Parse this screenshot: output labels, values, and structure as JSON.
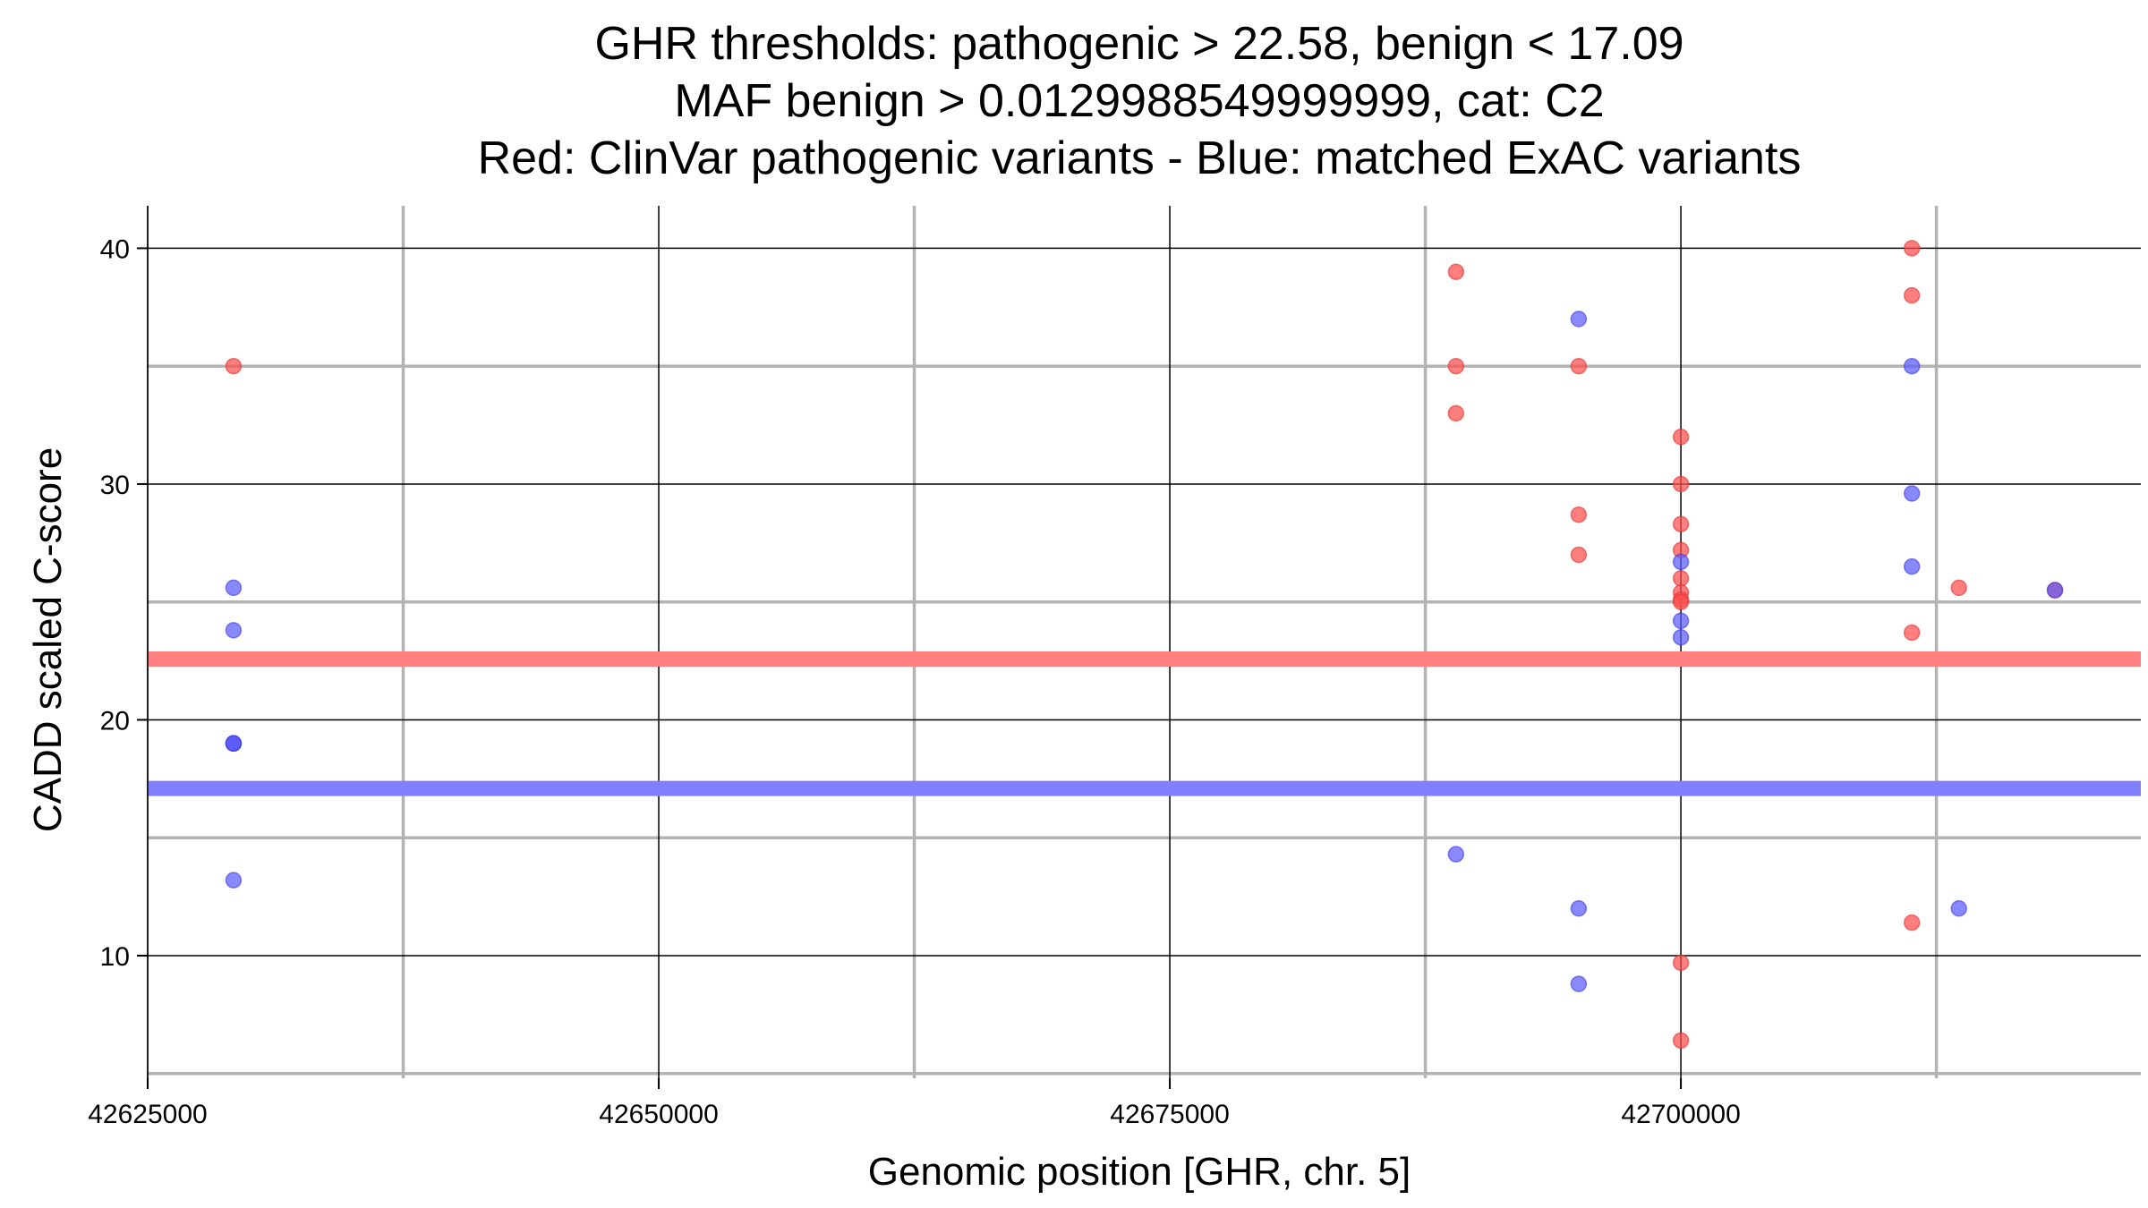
{
  "chart_data": {
    "type": "scatter",
    "title": [
      "GHR thresholds: pathogenic > 22.58, benign < 17.09",
      "MAF benign > 0.0129988549999999, cat: C2",
      "Red: ClinVar pathogenic variants - Blue: matched ExAC variants"
    ],
    "xlabel": "Genomic position [GHR, chr. 5]",
    "ylabel": "CADD scaled C-score",
    "xlim": [
      42625000,
      42722500
    ],
    "ylim": [
      4.8,
      41.8
    ],
    "xticks": [
      42625000,
      42650000,
      42675000,
      42700000
    ],
    "xtick_labels": [
      "42625000",
      "42650000",
      "42675000",
      "42700000"
    ],
    "x_minor_gridlines": [
      42637500,
      42662500,
      42687500,
      42712500
    ],
    "yticks": [
      10,
      20,
      30,
      40
    ],
    "ytick_labels": [
      "10",
      "20",
      "30",
      "40"
    ],
    "y_minor_gridlines": [
      5,
      15,
      25,
      35
    ],
    "thresholds": [
      {
        "name": "pathogenic",
        "value": 22.58,
        "color": "#ff8080"
      },
      {
        "name": "benign",
        "value": 17.09,
        "color": "#8080ff"
      }
    ],
    "series": [
      {
        "name": "ClinVar pathogenic variants",
        "color": "#ff4d4d",
        "edge": "#e03030",
        "points": [
          [
            42629200,
            35
          ],
          [
            42689000,
            39
          ],
          [
            42689000,
            35
          ],
          [
            42689000,
            33
          ],
          [
            42695000,
            35
          ],
          [
            42695000,
            28.7
          ],
          [
            42695000,
            27
          ],
          [
            42700000,
            32
          ],
          [
            42700000,
            30
          ],
          [
            42700000,
            28.3
          ],
          [
            42700000,
            27.2
          ],
          [
            42700000,
            26
          ],
          [
            42700000,
            25.4
          ],
          [
            42700000,
            25.1
          ],
          [
            42700000,
            25
          ],
          [
            42700000,
            9.7
          ],
          [
            42700000,
            6.4
          ],
          [
            42711300,
            40
          ],
          [
            42711300,
            38
          ],
          [
            42711300,
            23.7
          ],
          [
            42711300,
            11.4
          ],
          [
            42713600,
            25.6
          ],
          [
            42718300,
            25.5
          ]
        ]
      },
      {
        "name": "matched ExAC variants",
        "color": "#5a5aff",
        "edge": "#3c3ce0",
        "points": [
          [
            42629200,
            25.6
          ],
          [
            42629200,
            23.8
          ],
          [
            42629200,
            19
          ],
          [
            42629200,
            19
          ],
          [
            42629200,
            19
          ],
          [
            42629200,
            13.2
          ],
          [
            42695000,
            37
          ],
          [
            42695000,
            12
          ],
          [
            42695000,
            8.8
          ],
          [
            42689000,
            14.3
          ],
          [
            42700000,
            26.7
          ],
          [
            42700000,
            24.2
          ],
          [
            42700000,
            23.5
          ],
          [
            42711300,
            35
          ],
          [
            42711300,
            29.6
          ],
          [
            42711300,
            26.5
          ],
          [
            42713600,
            12
          ],
          [
            42718300,
            25.5
          ]
        ]
      }
    ]
  }
}
